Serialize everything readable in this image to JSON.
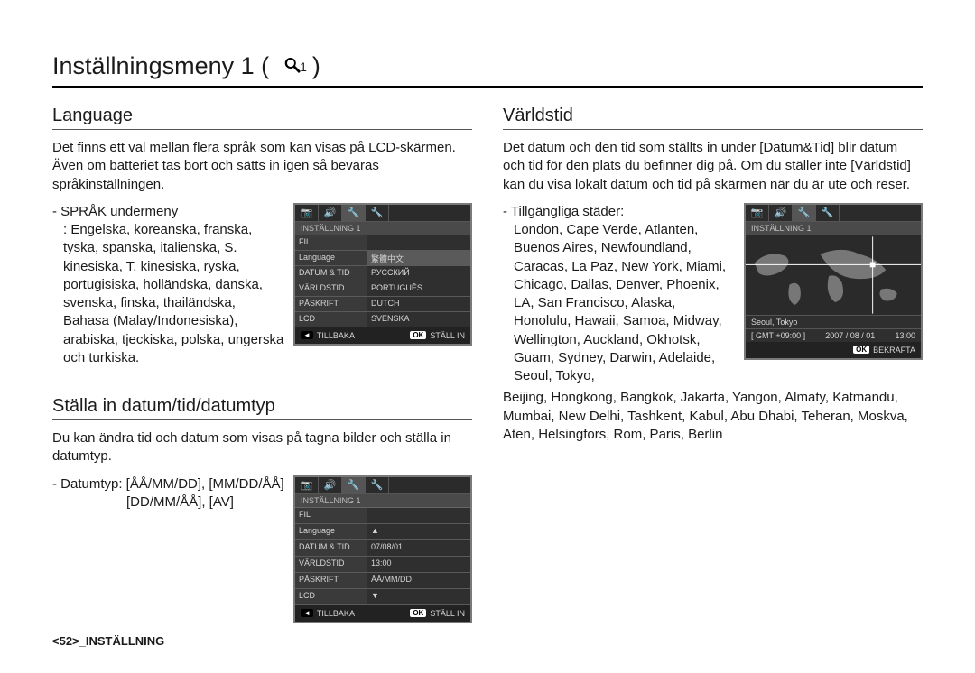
{
  "page": {
    "title_prefix": "Inställningsmeny 1 (",
    "title_suffix": " )",
    "wrench_sub": "1",
    "footer": "<52>_INSTÄLLNING"
  },
  "left": {
    "sec1": {
      "heading": "Language",
      "intro": "Det finns ett val mellan flera språk som kan visas på LCD-skärmen. Även om batteriet tas bort och sätts in igen så bevaras språkinställningen.",
      "bullet_lead": "- SPRÅK undermeny",
      "bullet_body": ": Engelska, koreanska, franska, tyska, spanska, italienska, S. kinesiska, T. kinesiska, ryska, portugisiska, holländska, danska, svenska, finska, thailändska, Bahasa (Malay/Indonesiska), arabiska, tjeckiska, polska, ungerska och turkiska."
    },
    "sec2": {
      "heading": "Ställa in datum/tid/datumtyp",
      "intro": "Du kan ändra tid och datum som visas på tagna bilder och ställa in datumtyp.",
      "bullet_lead": "- Datumtyp: [ÅÅ/MM/DD], [MM/DD/ÅÅ]",
      "bullet_body2": "[DD/MM/ÅÅ], [AV]"
    }
  },
  "right": {
    "sec1": {
      "heading": "Världstid",
      "intro": "Det datum och den tid som ställts in under [Datum&Tid] blir datum och tid för den plats du befinner dig på. Om du ställer inte [Världstid] kan du visa lokalt datum och tid på skärmen när du är ute och reser.",
      "bullet_lead": "- Tillgängliga städer:",
      "bullet_body1": "London, Cape Verde, Atlanten, Buenos Aires, Newfoundland, Caracas, La Paz, New York, Miami, Chicago, Dallas, Denver, Phoenix, LA, San Francisco, Alaska, Honolulu, Hawaii, Samoa, Midway, Wellington, Auckland, Okhotsk, Guam, Sydney, Darwin, Adelaide, Seoul, Tokyo,",
      "bullet_body2": "Beijing, Hongkong, Bangkok, Jakarta, Yangon, Almaty, Katmandu, Mumbai, New Delhi, Tashkent, Kabul, Abu Dhabi, Teheran, Moskva, Aten, Helsingfors, Rom, Paris, Berlin"
    }
  },
  "screens": {
    "lang": {
      "title": "INSTÄLLNING 1",
      "rows": [
        {
          "l": "FIL",
          "r": ""
        },
        {
          "l": "Language",
          "r": "繁體中文",
          "hi": true
        },
        {
          "l": "DATUM & TID",
          "r": "РУССКИЙ"
        },
        {
          "l": "VÄRLDSTID",
          "r": "PORTUGUÊS"
        },
        {
          "l": "PÅSKRIFT",
          "r": "DUTCH"
        },
        {
          "l": "LCD",
          "r": "SVENSKA"
        }
      ],
      "foot_back_key": "◄",
      "foot_back": "TILLBAKA",
      "foot_ok_key": "OK",
      "foot_ok": "STÄLL IN"
    },
    "date": {
      "title": "INSTÄLLNING 1",
      "rows": [
        {
          "l": "FIL",
          "r": ""
        },
        {
          "l": "Language",
          "r": "▲"
        },
        {
          "l": "DATUM & TID",
          "r": "07/08/01"
        },
        {
          "l": "VÄRLDSTID",
          "r": "13:00"
        },
        {
          "l": "PÅSKRIFT",
          "r": "ÅÅ/MM/DD"
        },
        {
          "l": "LCD",
          "r": "▼"
        }
      ],
      "foot_back_key": "◄",
      "foot_back": "TILLBAKA",
      "foot_ok_key": "OK",
      "foot_ok": "STÄLL IN"
    },
    "world": {
      "title": "INSTÄLLNING 1",
      "city": "Seoul, Tokyo",
      "gmt": "[ GMT +09:00 ]",
      "date": "2007 / 08 / 01",
      "time": "13:00",
      "foot_ok_key": "OK",
      "foot_ok": "BEKRÄFTA"
    },
    "icons": {
      "i1": "📷",
      "i2": "🔊",
      "i3": "🔧",
      "i4": "🔧"
    }
  }
}
